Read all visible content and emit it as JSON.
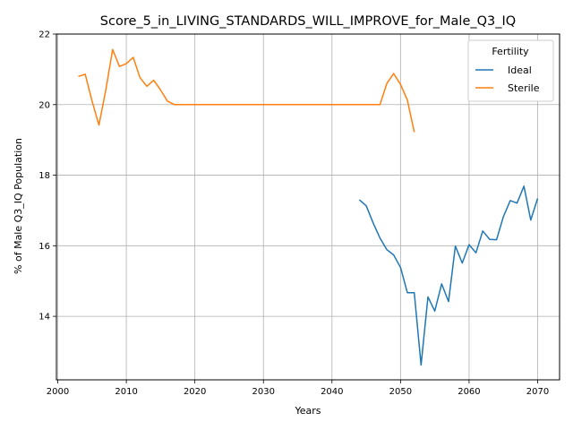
{
  "chart_data": {
    "type": "line",
    "title": "Score_5_in_LIVING_STANDARDS_WILL_IMPROVE_for_Male_Q3_IQ",
    "xlabel": "Years",
    "ylabel": "% of Male Q3_IQ Population",
    "xlim": [
      1999.8,
      2073.2
    ],
    "ylim": [
      12.2,
      22.0
    ],
    "x_ticks": [
      2000,
      2010,
      2020,
      2030,
      2040,
      2050,
      2060,
      2070
    ],
    "y_ticks": [
      14,
      16,
      18,
      20,
      22
    ],
    "grid": true,
    "legend": {
      "title": "Fertility",
      "placement": "top-right"
    },
    "series": [
      {
        "name": "Ideal",
        "color": "#1f77b4",
        "x": [
          2044,
          2045,
          2046,
          2047,
          2048,
          2049,
          2050,
          2051,
          2052,
          2053,
          2054,
          2055,
          2056,
          2057,
          2058,
          2059,
          2060,
          2061,
          2062,
          2063,
          2064,
          2065,
          2066,
          2067,
          2068,
          2069,
          2070
        ],
        "values": [
          17.3,
          17.13,
          16.65,
          16.22,
          15.89,
          15.74,
          15.38,
          14.67,
          14.67,
          12.62,
          14.55,
          14.15,
          14.92,
          14.42,
          15.99,
          15.51,
          16.03,
          15.8,
          16.42,
          16.18,
          16.17,
          16.82,
          17.28,
          17.21,
          17.69,
          16.73,
          17.34
        ]
      },
      {
        "name": "Sterile",
        "color": "#ff7f0e",
        "x": [
          2003,
          2004,
          2005,
          2006,
          2007,
          2008,
          2009,
          2010,
          2011,
          2012,
          2013,
          2014,
          2015,
          2016,
          2017,
          2018,
          2019,
          2020,
          2021,
          2022,
          2023,
          2024,
          2025,
          2026,
          2027,
          2028,
          2029,
          2030,
          2031,
          2032,
          2033,
          2034,
          2035,
          2036,
          2037,
          2038,
          2039,
          2040,
          2041,
          2042,
          2043,
          2044,
          2045,
          2046,
          2047,
          2048,
          2049,
          2050,
          2051,
          2052
        ],
        "values": [
          20.8,
          20.86,
          20.1,
          19.42,
          20.4,
          21.56,
          21.08,
          21.16,
          21.34,
          20.76,
          20.52,
          20.69,
          20.41,
          20.1,
          20.0,
          20.0,
          20.0,
          20.0,
          20.0,
          20.0,
          20.0,
          20.0,
          20.0,
          20.0,
          20.0,
          20.0,
          20.0,
          20.0,
          20.0,
          20.0,
          20.0,
          20.0,
          20.0,
          20.0,
          20.0,
          20.0,
          20.0,
          20.0,
          20.0,
          20.0,
          20.0,
          20.0,
          20.0,
          20.0,
          20.0,
          20.6,
          20.88,
          20.57,
          20.13,
          19.22
        ]
      }
    ]
  }
}
